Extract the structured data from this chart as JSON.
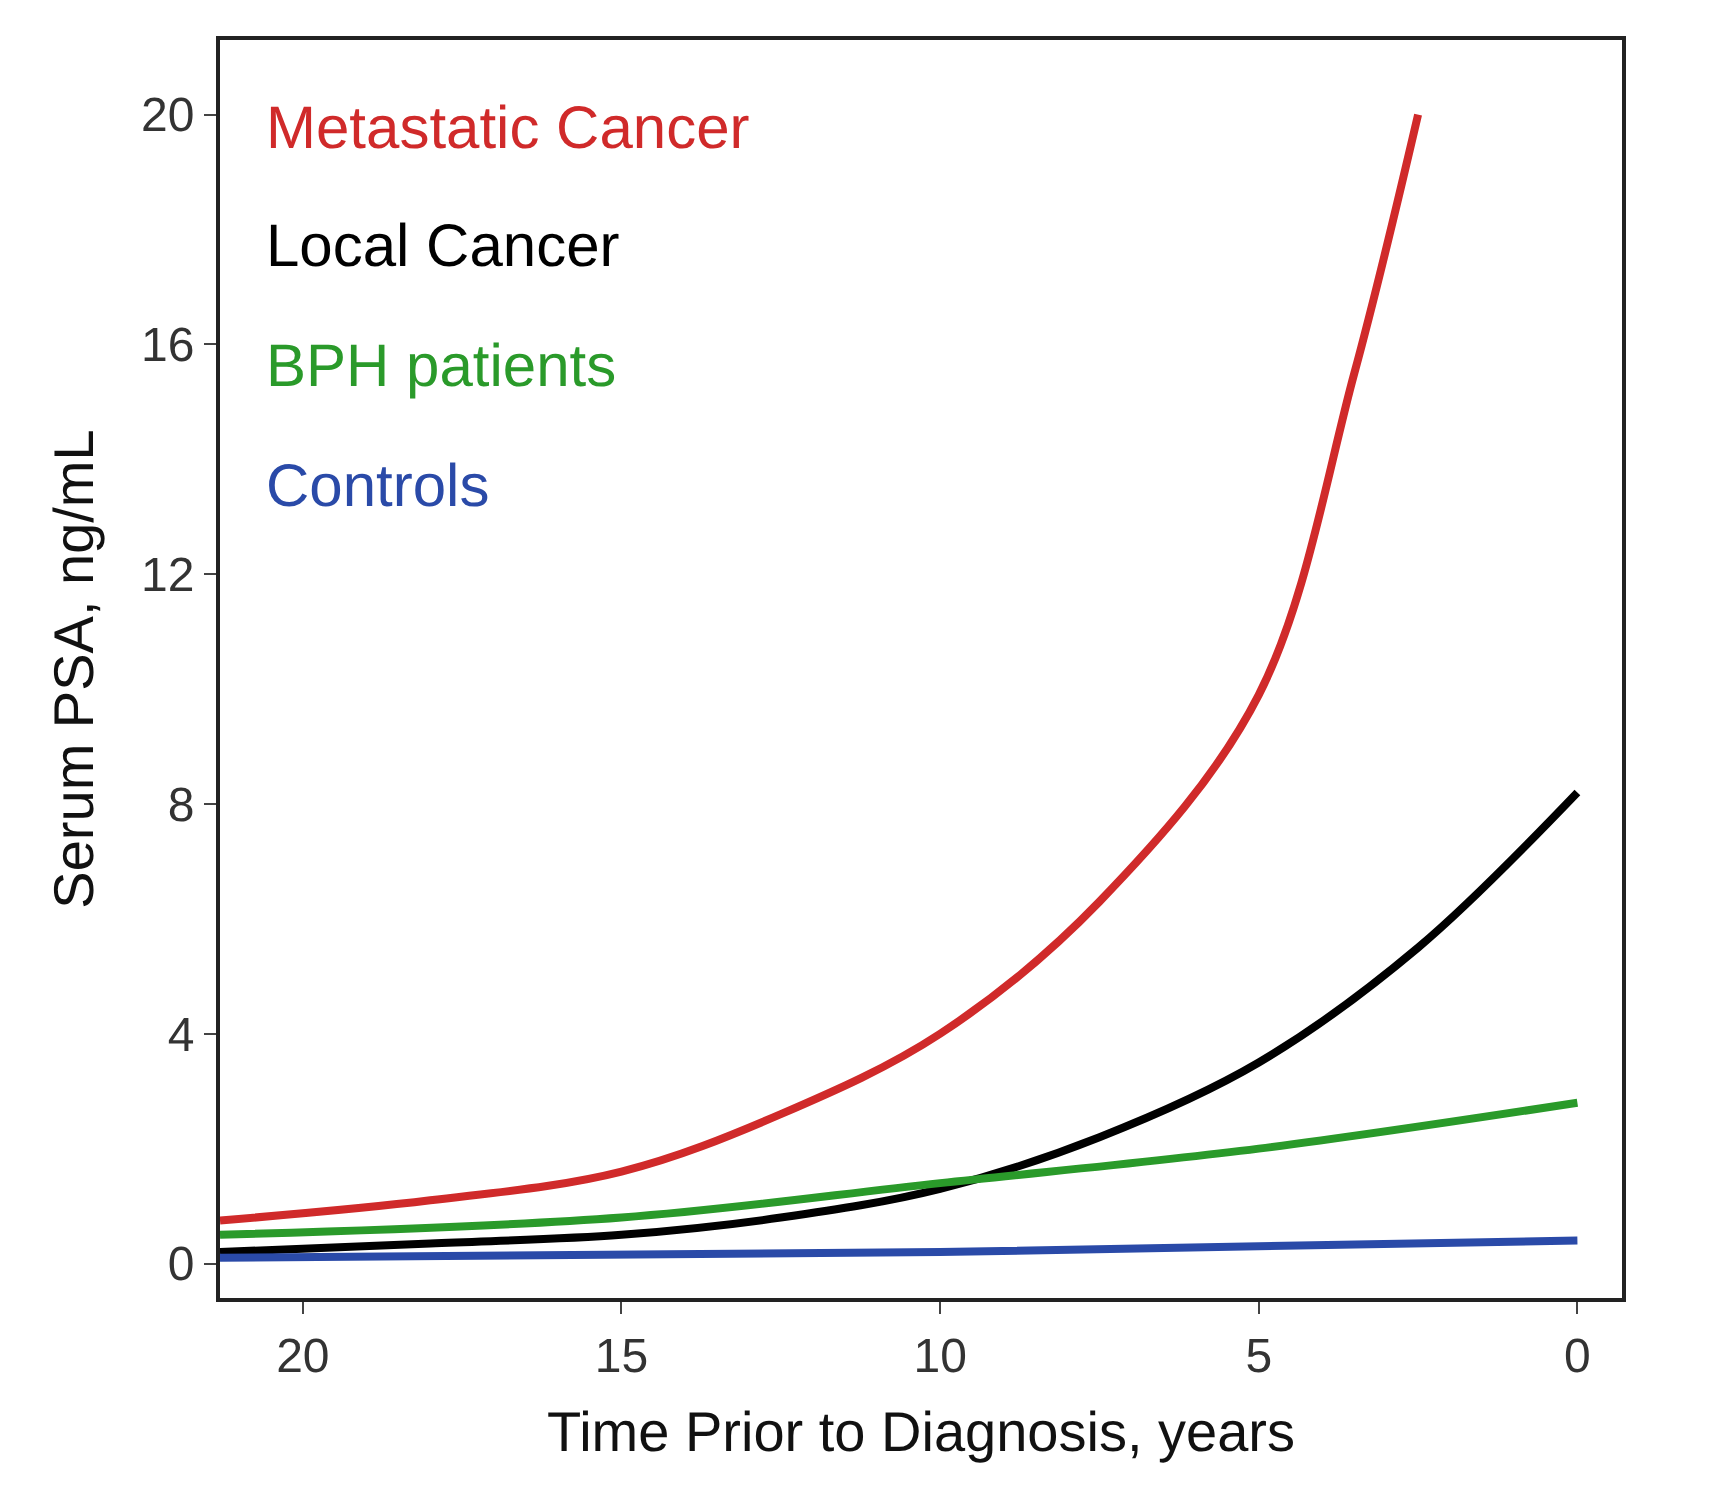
{
  "chart_data": {
    "type": "line",
    "xlabel": "Time Prior to Diagnosis, years",
    "ylabel": "Serum PSA, ng/mL",
    "xlim": [
      21.3,
      -0.7
    ],
    "ylim": [
      -0.6,
      21.3
    ],
    "xticks": [
      20,
      15,
      10,
      5,
      0
    ],
    "yticks": [
      0,
      4,
      8,
      12,
      16,
      20
    ],
    "legend": false,
    "marker": "none",
    "line_style": "solid",
    "series": [
      {
        "name": "Metastatic Cancer",
        "color": "#d02a2a",
        "x": [
          21.3,
          18,
          15,
          12.5,
          10,
          7.5,
          5,
          3.5,
          2.5
        ],
        "values": [
          0.75,
          1.1,
          1.6,
          2.6,
          4.0,
          6.3,
          9.9,
          15.5,
          20
        ]
      },
      {
        "name": "Local Cancer",
        "color": "#000000",
        "x": [
          21.3,
          18,
          15,
          12.5,
          10,
          7.5,
          5,
          2.5,
          0
        ],
        "values": [
          0.2,
          0.35,
          0.5,
          0.8,
          1.3,
          2.2,
          3.5,
          5.5,
          8.2
        ]
      },
      {
        "name": "BPH patients",
        "color": "#2a9a2a",
        "x": [
          21.3,
          15,
          10,
          5,
          0
        ],
        "values": [
          0.5,
          0.8,
          1.4,
          2.0,
          2.8
        ]
      },
      {
        "name": "Controls",
        "color": "#2a4aa8",
        "x": [
          21.3,
          10,
          0
        ],
        "values": [
          0.1,
          0.2,
          0.4
        ]
      }
    ]
  }
}
